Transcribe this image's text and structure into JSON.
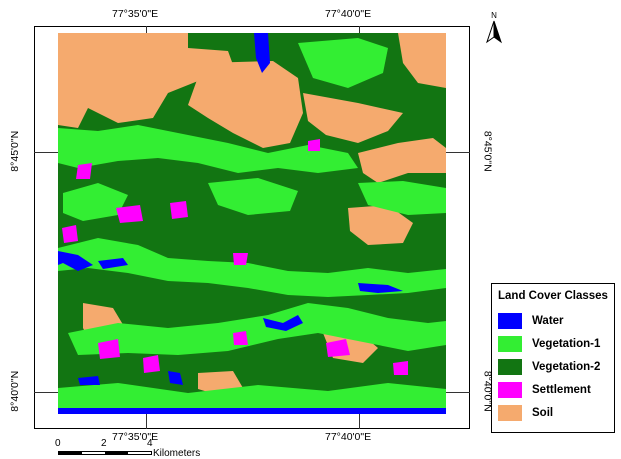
{
  "map": {
    "graticule": {
      "top_left": "77°35'0\"E",
      "top_right": "77°40'0\"E",
      "bottom_left": "77°35'0\"E",
      "bottom_right": "77°40'0\"E",
      "left_top": "8°45'0\"N",
      "left_bottom": "8°40'0\"N",
      "right_top": "8°45'0\"N",
      "right_bottom": "8°40'0\"N"
    },
    "north_label": "N"
  },
  "legend": {
    "title": "Land Cover Classes",
    "items": [
      {
        "label": "Water",
        "color": "#0000ff"
      },
      {
        "label": "Vegetation-1",
        "color": "#33ee33"
      },
      {
        "label": "Vegetation-2",
        "color": "#127512"
      },
      {
        "label": "Settlement",
        "color": "#ff00ff"
      },
      {
        "label": "Soil",
        "color": "#f5aa6e"
      }
    ]
  },
  "scalebar": {
    "ticks": [
      "0",
      "2",
      "4"
    ],
    "unit": "Kilometers"
  }
}
